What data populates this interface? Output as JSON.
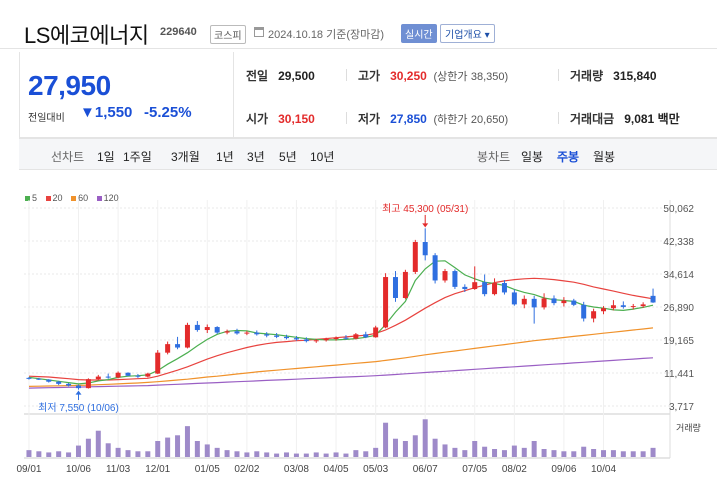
{
  "header": {
    "name": "LS에코에너지",
    "code": "229640",
    "market": "코스피",
    "date": "2024.10.18 기준(장마감)",
    "live_label": "실시간",
    "company_label": "기업개요 ▾"
  },
  "price": {
    "current": "27,950",
    "change_label": "전일대비",
    "change": "▼1,550",
    "percent": "-5.25%"
  },
  "stats": {
    "prev_close_k": "전일",
    "prev_close_v": "29,500",
    "high_k": "고가",
    "high_v": "30,250",
    "upper_k": "(상한가",
    "upper_v": "38,350)",
    "volume_k": "거래량",
    "volume_v": "315,840",
    "open_k": "시가",
    "open_v": "30,150",
    "low_k": "저가",
    "low_v": "27,850",
    "lower_k": "(하한가",
    "lower_v": "20,650)",
    "amount_k": "거래대금",
    "amount_v": "9,081",
    "amount_u": "백만"
  },
  "toolbar": {
    "line_label": "선차트",
    "periods": [
      "1일",
      "1주일",
      "3개월",
      "1년",
      "3년",
      "5년",
      "10년"
    ],
    "candle_label": "봉차트",
    "candle_periods": [
      "일봉",
      "주봉",
      "월봉"
    ],
    "active_candle": "주봉"
  },
  "colors": {
    "up": "#e32b2b",
    "down": "#2f6fe0",
    "ma5": "#4caf50",
    "ma20": "#e8433f",
    "ma60": "#f0922b",
    "ma120": "#9a5fc4",
    "volume": "#9e8ac9"
  },
  "chart_data": {
    "type": "candlestick",
    "legend": [
      {
        "name": "5",
        "color": "#4caf50"
      },
      {
        "name": "20",
        "color": "#e8433f"
      },
      {
        "name": "60",
        "color": "#f0922b"
      },
      {
        "name": "120",
        "color": "#9a5fc4"
      }
    ],
    "yticks": [
      "50,062",
      "42,338",
      "34,614",
      "26,890",
      "19,165",
      "11,441",
      "3,717"
    ],
    "ylim": [
      3717,
      50062
    ],
    "xticks": [
      "09/01",
      "10/06",
      "11/03",
      "12/01",
      "01/05",
      "02/02",
      "03/08",
      "04/05",
      "05/03",
      "06/07",
      "07/05",
      "08/02",
      "09/06",
      "10/04"
    ],
    "max_annotation": "최고 45,300 (05/31)",
    "min_annotation": "최저 7,550 (10/06)",
    "volume_label": "거래량",
    "candles": [
      [
        10300,
        10500,
        9900,
        10100
      ],
      [
        10100,
        10300,
        9800,
        9900
      ],
      [
        9900,
        10000,
        9200,
        9400
      ],
      [
        9400,
        9600,
        8600,
        8900
      ],
      [
        8900,
        9100,
        8300,
        8500
      ],
      [
        8500,
        8700,
        7550,
        7900
      ],
      [
        7900,
        10200,
        7800,
        10000
      ],
      [
        10000,
        11000,
        9700,
        10600
      ],
      [
        10600,
        11300,
        10100,
        10400
      ],
      [
        10400,
        11800,
        10200,
        11500
      ],
      [
        11500,
        11600,
        10700,
        10800
      ],
      [
        10800,
        11200,
        10300,
        10600
      ],
      [
        10600,
        11500,
        10400,
        11300
      ],
      [
        11300,
        16800,
        11200,
        16200
      ],
      [
        16200,
        18800,
        15800,
        18200
      ],
      [
        18200,
        19900,
        17000,
        17400
      ],
      [
        17400,
        23200,
        17200,
        22700
      ],
      [
        22700,
        23600,
        21100,
        21500
      ],
      [
        21500,
        22800,
        20800,
        22200
      ],
      [
        22200,
        22400,
        20600,
        20900
      ],
      [
        20900,
        21600,
        20500,
        21200
      ],
      [
        21200,
        21800,
        20400,
        20700
      ],
      [
        20700,
        21300,
        20300,
        20900
      ],
      [
        20900,
        21400,
        20200,
        20500
      ],
      [
        20500,
        21000,
        19800,
        20200
      ],
      [
        20200,
        20800,
        19600,
        19900
      ],
      [
        19900,
        20400,
        19300,
        19600
      ],
      [
        19600,
        20100,
        19000,
        19300
      ],
      [
        19300,
        19800,
        18600,
        18900
      ],
      [
        18900,
        19400,
        18500,
        19100
      ],
      [
        19100,
        19700,
        18800,
        19400
      ],
      [
        19400,
        20000,
        19000,
        19700
      ],
      [
        19700,
        20300,
        19200,
        19500
      ],
      [
        19500,
        20800,
        19300,
        20500
      ],
      [
        20500,
        21100,
        19600,
        19800
      ],
      [
        19800,
        22500,
        19700,
        22100
      ],
      [
        22100,
        34800,
        21900,
        33900
      ],
      [
        33900,
        35300,
        28100,
        29000
      ],
      [
        29000,
        35600,
        28700,
        35100
      ],
      [
        35100,
        42600,
        34600,
        42100
      ],
      [
        42100,
        45300,
        37800,
        39000
      ],
      [
        39000,
        39500,
        32400,
        33100
      ],
      [
        33100,
        35800,
        32600,
        35300
      ],
      [
        35300,
        35700,
        31100,
        31600
      ],
      [
        31600,
        32200,
        30400,
        31100
      ],
      [
        31100,
        36400,
        30900,
        32700
      ],
      [
        32700,
        34500,
        29400,
        29900
      ],
      [
        29900,
        33600,
        29600,
        32500
      ],
      [
        32500,
        33200,
        29800,
        30300
      ],
      [
        30300,
        31000,
        27200,
        27500
      ],
      [
        27500,
        29600,
        26600,
        28800
      ],
      [
        28800,
        29500,
        23000,
        26800
      ],
      [
        26800,
        30100,
        26300,
        28900
      ],
      [
        28900,
        29600,
        27300,
        27800
      ],
      [
        27800,
        29200,
        27000,
        28400
      ],
      [
        28400,
        28800,
        27100,
        27400
      ],
      [
        27400,
        28100,
        23500,
        24200
      ],
      [
        24200,
        26500,
        23300,
        25900
      ],
      [
        25900,
        27100,
        25200,
        26600
      ],
      [
        26600,
        28500,
        26100,
        27300
      ],
      [
        27300,
        28200,
        26500,
        26900
      ],
      [
        26900,
        27600,
        26300,
        27100
      ],
      [
        27100,
        28000,
        26700,
        27500
      ],
      [
        29500,
        31200,
        27850,
        27950
      ]
    ],
    "ma5": [
      10400,
      10100,
      9800,
      9500,
      9200,
      8900,
      9100,
      9600,
      9900,
      10400,
      10700,
      10800,
      11000,
      12000,
      13500,
      14800,
      16200,
      17800,
      19300,
      20500,
      21200,
      21400,
      21300,
      20800,
      20600,
      20400,
      20100,
      19800,
      19500,
      19300,
      19200,
      19200,
      19300,
      19500,
      19800,
      20300,
      22800,
      25700,
      28200,
      33100,
      35800,
      37600,
      37700,
      36100,
      34400,
      33500,
      32700,
      32400,
      31900,
      31000,
      30300,
      29800,
      29000,
      28600,
      28400,
      28200,
      27300,
      26900,
      26600,
      26200,
      26100,
      26400,
      26800,
      27300
    ],
    "ma20": [
      10700,
      10600,
      10500,
      10300,
      10100,
      9900,
      9800,
      9800,
      9800,
      9900,
      10000,
      10100,
      10200,
      10700,
      11400,
      12100,
      12900,
      13800,
      14700,
      15500,
      16200,
      16800,
      17400,
      17900,
      18300,
      18600,
      18800,
      19000,
      19100,
      19300,
      19500,
      19700,
      19900,
      20100,
      20300,
      20700,
      21500,
      22600,
      23800,
      25200,
      26600,
      27900,
      29100,
      30000,
      30700,
      31400,
      32000,
      32600,
      33000,
      33300,
      33500,
      33600,
      33500,
      33300,
      33000,
      32700,
      32200,
      31600,
      31100,
      30600,
      30100,
      29600,
      29200,
      28800
    ],
    "ma60": [
      8300,
      8350,
      8400,
      8450,
      8500,
      8550,
      8600,
      8700,
      8800,
      8900,
      9000,
      9100,
      9250,
      9400,
      9600,
      9800,
      10000,
      10250,
      10500,
      10700,
      10950,
      11200,
      11450,
      11700,
      11900,
      12100,
      12300,
      12500,
      12700,
      12900,
      13100,
      13300,
      13500,
      13700,
      13900,
      14100,
      14400,
      14700,
      15000,
      15350,
      15700,
      16000,
      16300,
      16600,
      16900,
      17200,
      17500,
      17800,
      18100,
      18400,
      18700,
      19000,
      19250,
      19500,
      19750,
      20000,
      20250,
      20500,
      20750,
      21000,
      21250,
      21500,
      21750,
      22000
    ],
    "ma120": [
      7900,
      7950,
      8000,
      8050,
      8100,
      8150,
      8200,
      8250,
      8300,
      8350,
      8400,
      8450,
      8500,
      8600,
      8700,
      8800,
      8900,
      9000,
      9100,
      9200,
      9300,
      9400,
      9500,
      9600,
      9700,
      9800,
      9900,
      10000,
      10100,
      10200,
      10300,
      10400,
      10500,
      10600,
      10700,
      10800,
      10950,
      11100,
      11250,
      11400,
      11550,
      11700,
      11850,
      12000,
      12150,
      12300,
      12450,
      12600,
      12750,
      12900,
      13050,
      13200,
      13350,
      13500,
      13650,
      13800,
      13950,
      14100,
      14250,
      14400,
      14550,
      14700,
      14850,
      15000
    ],
    "volume": [
      6,
      5,
      4,
      5,
      4,
      10,
      16,
      23,
      12,
      8,
      6,
      5,
      5,
      14,
      17,
      19,
      27,
      14,
      11,
      8,
      6,
      5,
      4,
      5,
      4,
      3,
      4,
      3,
      3,
      4,
      3,
      4,
      3,
      6,
      5,
      8,
      30,
      16,
      14,
      19,
      33,
      16,
      11,
      8,
      6,
      14,
      9,
      7,
      6,
      10,
      8,
      14,
      7,
      6,
      5,
      5,
      9,
      7,
      6,
      6,
      5,
      5,
      5,
      8
    ]
  }
}
